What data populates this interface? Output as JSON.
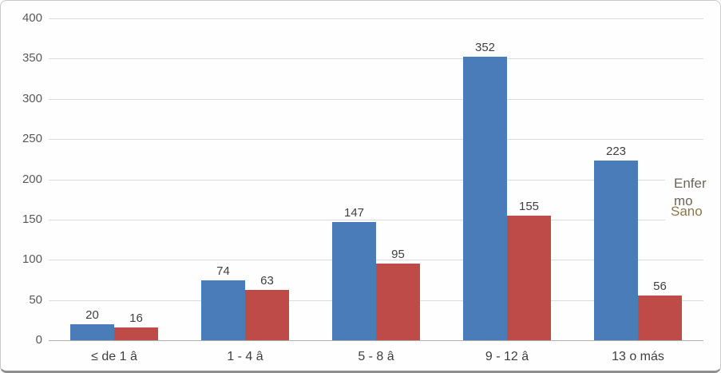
{
  "chart_data": {
    "type": "bar",
    "title": "",
    "categories": [
      "≤ de 1 â",
      "1 - 4  â",
      "5 - 8  â",
      "9 - 12  â",
      "13 o más"
    ],
    "series": [
      {
        "name": "Enfermo",
        "color": "#4A7CBA",
        "values": [
          20,
          74,
          147,
          352,
          223
        ]
      },
      {
        "name": "Sano",
        "color": "#BE4B48",
        "values": [
          16,
          63,
          95,
          155,
          56
        ]
      }
    ],
    "ylim": [
      0,
      400
    ],
    "yticks": [
      0,
      50,
      100,
      150,
      200,
      250,
      300,
      350,
      400
    ],
    "grid": true,
    "data_labels": true,
    "legend_position": "right"
  },
  "legend": {
    "enfermo_label": "Enfermo",
    "sano_label": "Sano",
    "enfermo_text_color": "#6a665a",
    "sano_text_color": "#8c774a"
  },
  "axis_colors": {
    "gridline": "#dcdcdc",
    "baseline": "#b0b0b0",
    "tick_text": "#595959",
    "category_text": "#3f3f3f",
    "value_label_text": "#404040"
  }
}
